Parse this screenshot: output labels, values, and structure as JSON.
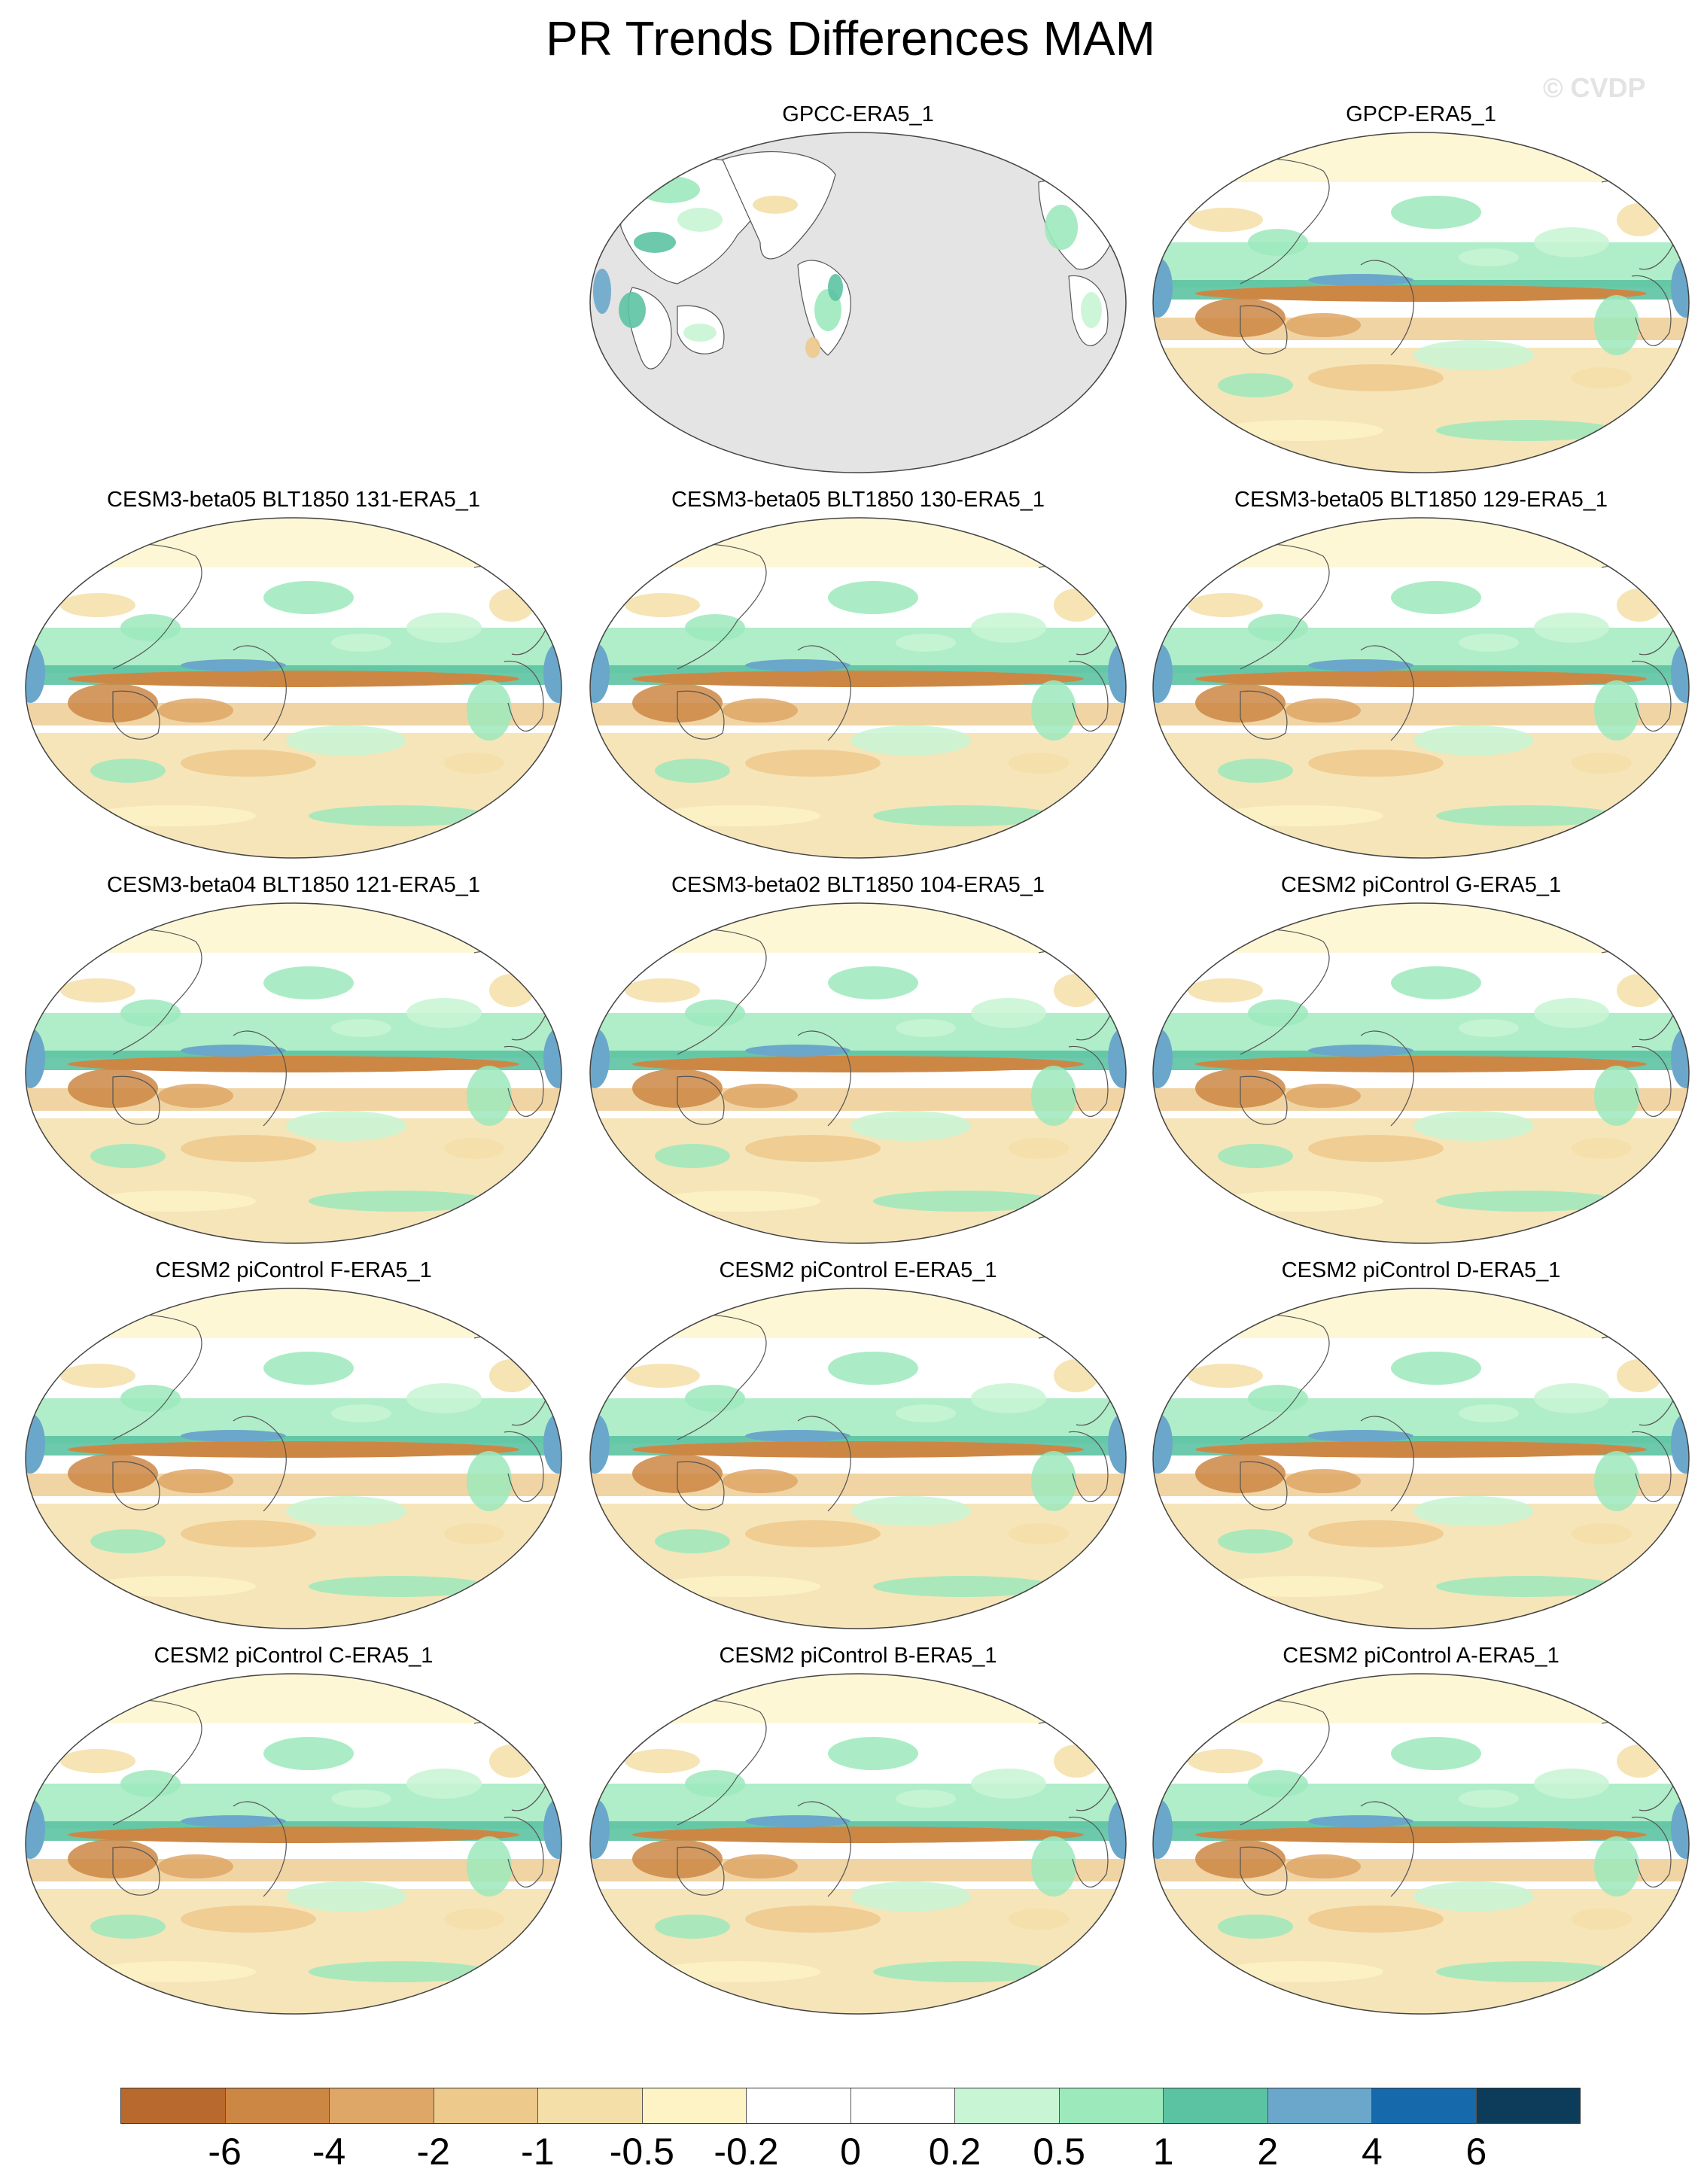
{
  "title": "PR Trends Differences MAM",
  "watermark": "© CVDP",
  "panels": [
    {
      "label": "GPCC-ERA5_1",
      "variant": "obs_land"
    },
    {
      "label": "GPCP-ERA5_1",
      "variant": "obs_global"
    },
    {
      "label": "CESM3-beta05 BLT1850 131-ERA5_1",
      "variant": "model"
    },
    {
      "label": "CESM3-beta05 BLT1850 130-ERA5_1",
      "variant": "model"
    },
    {
      "label": "CESM3-beta05 BLT1850 129-ERA5_1",
      "variant": "model"
    },
    {
      "label": "CESM3-beta04 BLT1850 121-ERA5_1",
      "variant": "model"
    },
    {
      "label": "CESM3-beta02 BLT1850 104-ERA5_1",
      "variant": "model"
    },
    {
      "label": "CESM2 piControl G-ERA5_1",
      "variant": "model"
    },
    {
      "label": "CESM2 piControl F-ERA5_1",
      "variant": "model"
    },
    {
      "label": "CESM2 piControl E-ERA5_1",
      "variant": "model"
    },
    {
      "label": "CESM2 piControl D-ERA5_1",
      "variant": "model"
    },
    {
      "label": "CESM2 piControl C-ERA5_1",
      "variant": "model"
    },
    {
      "label": "CESM2 piControl B-ERA5_1",
      "variant": "model"
    },
    {
      "label": "CESM2 piControl A-ERA5_1",
      "variant": "model"
    }
  ],
  "colorbar": {
    "colors": [
      "#b8692e",
      "#cd8744",
      "#dea767",
      "#eec98c",
      "#f4dfa8",
      "#fdf3c5",
      "#ffffff",
      "#ffffff",
      "#c8f5d4",
      "#9ce9bc",
      "#5cc3a2",
      "#6aa7cb",
      "#1669aa",
      "#0c3c5a"
    ],
    "ticks": [
      "-6",
      "-4",
      "-2",
      "-1",
      "-0.5",
      "-0.2",
      "0",
      "0.2",
      "0.5",
      "1",
      "2",
      "4",
      "6"
    ]
  }
}
